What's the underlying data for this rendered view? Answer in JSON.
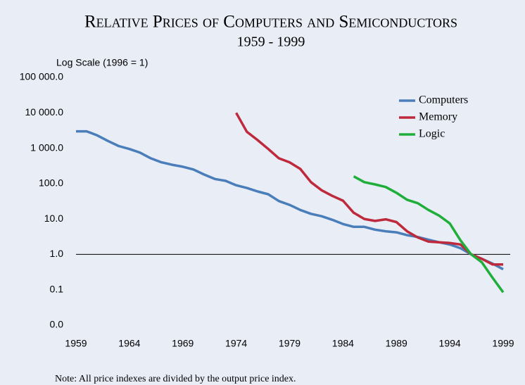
{
  "chart_data": {
    "type": "line",
    "title": "Relative Prices of Computers and Semiconductors",
    "subtitle": "1959 - 1999",
    "y_axis_label": "Log Scale (1996 = 1)",
    "note": "Note:  All price indexes are divided by the output price index.",
    "log_y": true,
    "reference_line": 1,
    "legend": "top-right",
    "x": [
      1959,
      1960,
      1961,
      1962,
      1963,
      1964,
      1965,
      1966,
      1967,
      1968,
      1969,
      1970,
      1971,
      1972,
      1973,
      1974,
      1975,
      1976,
      1977,
      1978,
      1979,
      1980,
      1981,
      1982,
      1983,
      1984,
      1985,
      1986,
      1987,
      1988,
      1989,
      1990,
      1991,
      1992,
      1993,
      1994,
      1995,
      1996,
      1997,
      1998,
      1999
    ],
    "xlim": [
      1959,
      1999
    ],
    "xticks": [
      1959,
      1964,
      1969,
      1974,
      1979,
      1984,
      1989,
      1994,
      1999
    ],
    "ylim": [
      0.01,
      100000
    ],
    "yticks": [
      {
        "value": 0.01,
        "label": "0.0"
      },
      {
        "value": 0.1,
        "label": "0.1"
      },
      {
        "value": 1,
        "label": "1.0"
      },
      {
        "value": 10,
        "label": "10.0"
      },
      {
        "value": 100,
        "label": "100.0"
      },
      {
        "value": 1000,
        "label": "1 000.0"
      },
      {
        "value": 10000,
        "label": "10 000.0"
      },
      {
        "value": 100000,
        "label": "100 000.0"
      }
    ],
    "series": [
      {
        "name": "Computers",
        "color": "#4a7ebb",
        "values": [
          3000,
          3000,
          2300,
          1600,
          1150,
          950,
          750,
          520,
          400,
          340,
          300,
          250,
          180,
          135,
          120,
          90,
          75,
          60,
          50,
          32,
          25,
          18,
          14,
          12,
          9.5,
          7.2,
          6,
          6,
          5,
          4.5,
          4.2,
          3.5,
          3.1,
          2.6,
          2.2,
          1.9,
          1.5,
          1,
          0.75,
          0.55,
          0.38
        ]
      },
      {
        "name": "Memory",
        "color": "#be2a3c",
        "values": [
          null,
          null,
          null,
          null,
          null,
          null,
          null,
          null,
          null,
          null,
          null,
          null,
          null,
          null,
          null,
          10000,
          2900,
          1700,
          950,
          520,
          400,
          260,
          110,
          65,
          45,
          33,
          15,
          10,
          8.8,
          9.8,
          8.2,
          4.5,
          3,
          2.3,
          2.2,
          2.1,
          1.9,
          1,
          0.75,
          0.52,
          0.52
        ]
      },
      {
        "name": "Logic",
        "color": "#1fae3a",
        "values": [
          null,
          null,
          null,
          null,
          null,
          null,
          null,
          null,
          null,
          null,
          null,
          null,
          null,
          null,
          null,
          null,
          null,
          null,
          null,
          null,
          null,
          null,
          null,
          null,
          null,
          null,
          160,
          110,
          95,
          80,
          55,
          35,
          28,
          18,
          12.5,
          7.5,
          2.5,
          1,
          0.6,
          0.22,
          0.085
        ]
      }
    ]
  }
}
